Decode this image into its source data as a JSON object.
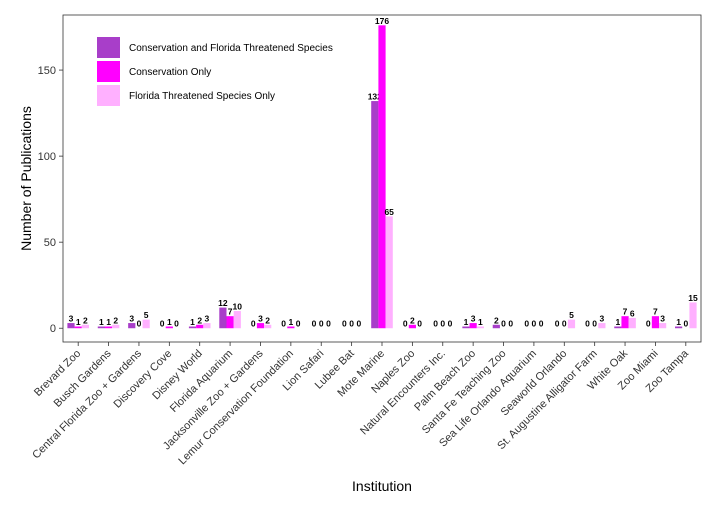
{
  "chart_data": {
    "type": "bar",
    "xlabel": "Institution",
    "ylabel": "Number of Publications",
    "ylim": [
      -8,
      182
    ],
    "yticks": [
      0,
      50,
      100,
      150
    ],
    "grid": false,
    "legend_position": "top-left",
    "categories": [
      "Brevard Zoo",
      "Busch Gardens",
      "Central Florida Zoo + Gardens",
      "Discovery Cove",
      "Disney World",
      "Florida Aquarium",
      "Jacksonville Zoo + Gardens",
      "Lemur Conservation Foundation",
      "Lion Safari",
      "Lubee Bat",
      "Mote Marine",
      "Naples Zoo",
      "Natural Encounters Inc.",
      "Palm Beach Zoo",
      "Santa Fe  Teaching Zoo",
      "Sea Life Orlando Aquarium",
      "Seaworld Orlando",
      "St. Augustine Alligator Farm",
      "White Oak",
      "Zoo Miami",
      "Zoo Tampa"
    ],
    "series": [
      {
        "name": "Conservation and Florida Threatened Species",
        "color": "#a83ec9",
        "values": [
          3,
          1,
          3,
          0,
          1,
          12,
          0,
          0,
          0,
          0,
          132,
          0,
          0,
          1,
          2,
          0,
          0,
          0,
          1,
          0,
          1
        ]
      },
      {
        "name": "Conservation Only",
        "color": "#ff00ff",
        "values": [
          1,
          1,
          0,
          1,
          2,
          7,
          3,
          1,
          0,
          0,
          176,
          2,
          0,
          3,
          0,
          0,
          0,
          0,
          7,
          7,
          0
        ]
      },
      {
        "name": "Florida Threatened Species Only",
        "color": "#ffb0ff",
        "values": [
          2,
          2,
          5,
          0,
          3,
          10,
          2,
          0,
          0,
          0,
          65,
          0,
          0,
          1,
          0,
          0,
          5,
          3,
          6,
          3,
          15
        ]
      }
    ]
  }
}
